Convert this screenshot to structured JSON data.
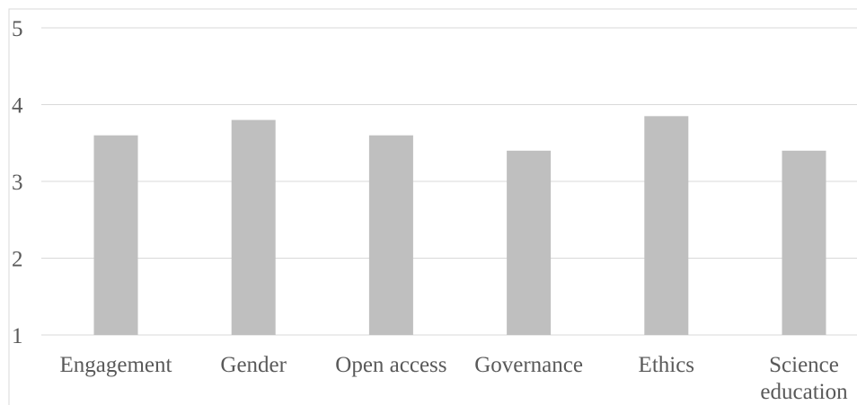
{
  "chart_data": {
    "type": "bar",
    "categories": [
      [
        "Engagement"
      ],
      [
        "Gender"
      ],
      [
        "Open access"
      ],
      [
        "Governance"
      ],
      [
        "Ethics"
      ],
      [
        "Science",
        "education"
      ]
    ],
    "values": [
      3.6,
      3.8,
      3.6,
      3.4,
      3.85,
      3.4
    ],
    "ylim": [
      1,
      5
    ],
    "yticks": [
      "1",
      "2",
      "3",
      "4",
      "5"
    ],
    "title": "",
    "xlabel": "",
    "ylabel": "",
    "grid": true,
    "legend": "none",
    "colors": {
      "bar": "#bfbfbf",
      "grid": "#d9d9d9",
      "axis": "#d9d9d9",
      "text": "#595959"
    }
  }
}
